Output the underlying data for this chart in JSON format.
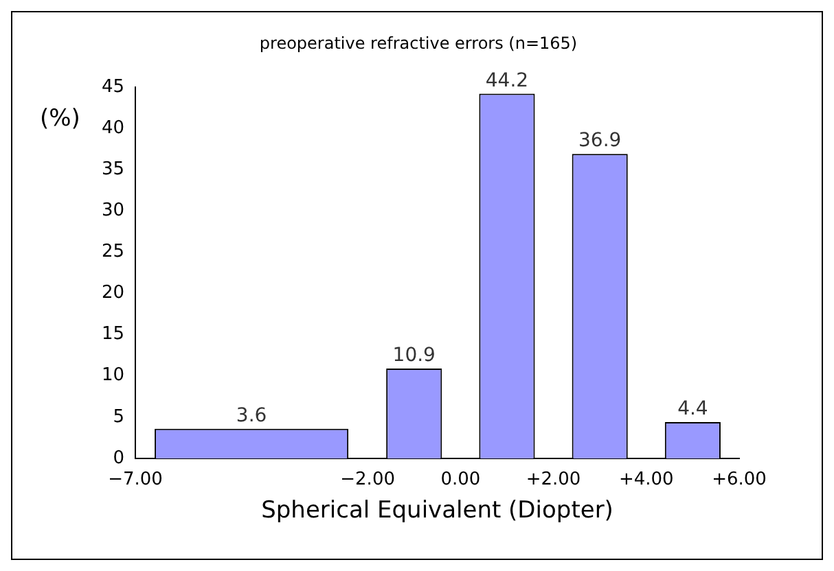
{
  "chart_data": {
    "type": "histogram",
    "title": "preoperative refractive errors (n=165)",
    "xlabel": "Spherical Equivalent (Diopter)",
    "ylabel": "(%)",
    "bins": [
      -7,
      -2,
      0,
      2,
      4,
      6
    ],
    "values": [
      3.6,
      10.9,
      44.2,
      36.9,
      4.4
    ],
    "color": "#9999ff",
    "xticks": [
      {
        "value": -7,
        "label": "−7.00"
      },
      {
        "value": -2,
        "label": "−2.00"
      },
      {
        "value": 0,
        "label": "0.00"
      },
      {
        "value": 2,
        "label": "+2.00"
      },
      {
        "value": 4,
        "label": "+4.00"
      },
      {
        "value": 6,
        "label": "+6.00"
      }
    ],
    "xlim": [
      -7,
      6
    ],
    "ylim": [
      0,
      45
    ],
    "yticks": [
      0,
      5,
      10,
      15,
      20,
      25,
      30,
      35,
      40,
      45
    ],
    "data_labels": true,
    "grid": false,
    "legend": false
  }
}
